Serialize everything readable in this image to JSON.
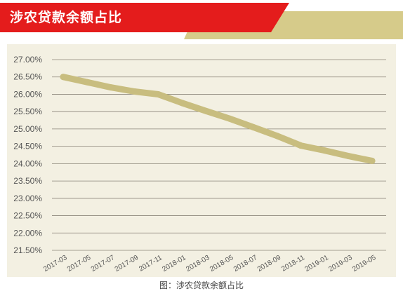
{
  "banner": {
    "title": "涉农贷款余额占比"
  },
  "colors": {
    "banner_red": "#e41c1c",
    "banner_gold": "#d6cb8a",
    "plot_bg": "#f3f0e2",
    "line": "#c8bd7f",
    "grid": "#8a8478",
    "tick_text": "#555555"
  },
  "chart_data": {
    "type": "line",
    "title": "",
    "xlabel": "",
    "ylabel": "",
    "grid": true,
    "categories": [
      "2017-03",
      "2017-05",
      "2017-07",
      "2017-09",
      "2017-11",
      "2018-01",
      "2018-03",
      "2018-05",
      "2018-07",
      "2018-09",
      "2018-11",
      "2019-01",
      "2019-03",
      "2019-05"
    ],
    "y_tick_labels": [
      "27.00%",
      "26.50%",
      "26.00%",
      "25.50%",
      "25.00%",
      "24.50%",
      "24.00%",
      "23.50%",
      "23.00%",
      "22.50%",
      "22.00%",
      "21.50%"
    ],
    "ylim": [
      21.5,
      27.0
    ],
    "series": [
      {
        "values": [
          26.5,
          26.35,
          26.2,
          26.08,
          26.0,
          25.75,
          25.52,
          25.3,
          25.05,
          24.8,
          24.52,
          24.38,
          24.22,
          24.08
        ]
      }
    ]
  },
  "caption": "图：涉农贷款余额占比"
}
